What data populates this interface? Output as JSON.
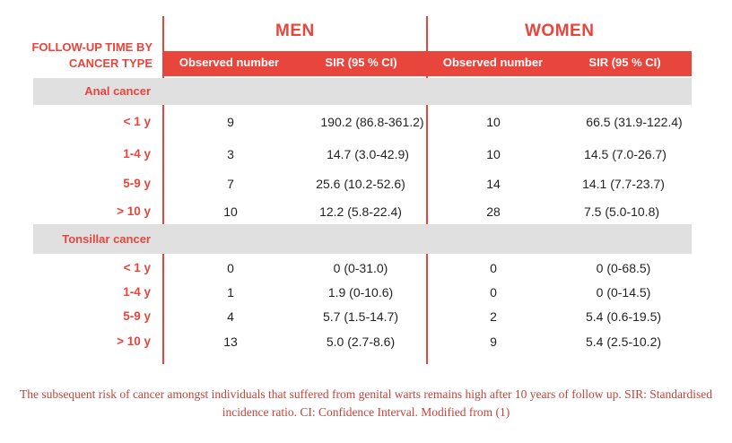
{
  "table": {
    "row_header": "FOLLOW-UP TIME BY CANCER TYPE",
    "men_label": "MEN",
    "women_label": "WOMEN",
    "columns": [
      "Observed number",
      "SIR (95 % CI)",
      "Observed number",
      "SIR (95 % CI)"
    ],
    "sections": [
      {
        "name": "Anal cancer",
        "rows": [
          {
            "label": "< 1 y",
            "men_obs": "9",
            "men_sir": "190.2 (86.8-361.2)",
            "women_obs": "10",
            "women_sir": "66.5 (31.9-122.4)"
          },
          {
            "label": "1-4 y",
            "men_obs": "3",
            "men_sir": "14.7 (3.0-42.9)",
            "women_obs": "10",
            "women_sir": "14.5 (7.0-26.7)"
          },
          {
            "label": "5-9 y",
            "men_obs": "7",
            "men_sir": "25.6 (10.2-52.6)",
            "women_obs": "14",
            "women_sir": "14.1 (7.7-23.7)"
          },
          {
            "label": "> 10 y",
            "men_obs": "10",
            "men_sir": "12.2 (5.8-22.4)",
            "women_obs": "28",
            "women_sir": "7.5 (5.0-10.8)"
          }
        ]
      },
      {
        "name": "Tonsillar cancer",
        "rows": [
          {
            "label": "< 1 y",
            "men_obs": "0",
            "men_sir": "0 (0-31.0)",
            "women_obs": "0",
            "women_sir": "0 (0-68.5)"
          },
          {
            "label": "1-4 y",
            "men_obs": "1",
            "men_sir": "1.9 (0-10.6)",
            "women_obs": "0",
            "women_sir": "0 (0-14.5)"
          },
          {
            "label": "5-9 y",
            "men_obs": "4",
            "men_sir": "5.7 (1.5-14.7)",
            "women_obs": "2",
            "women_sir": "5.4 (0.6-19.5)"
          },
          {
            "label": "> 10 y",
            "men_obs": "13",
            "men_sir": "5.0 (2.7-8.6)",
            "women_obs": "9",
            "women_sir": "5.4 (2.5-10.2)"
          }
        ]
      }
    ]
  },
  "caption": "The subsequent risk of cancer amongst individuals that suffered from genital warts remains high after 10 years of follow up. SIR: Standardised incidence ratio. CI: Confidence Interval. Modified from (1)",
  "colors": {
    "accent": "#e8453c",
    "section_bg": "#e0e0e0",
    "text": "#231f20"
  }
}
